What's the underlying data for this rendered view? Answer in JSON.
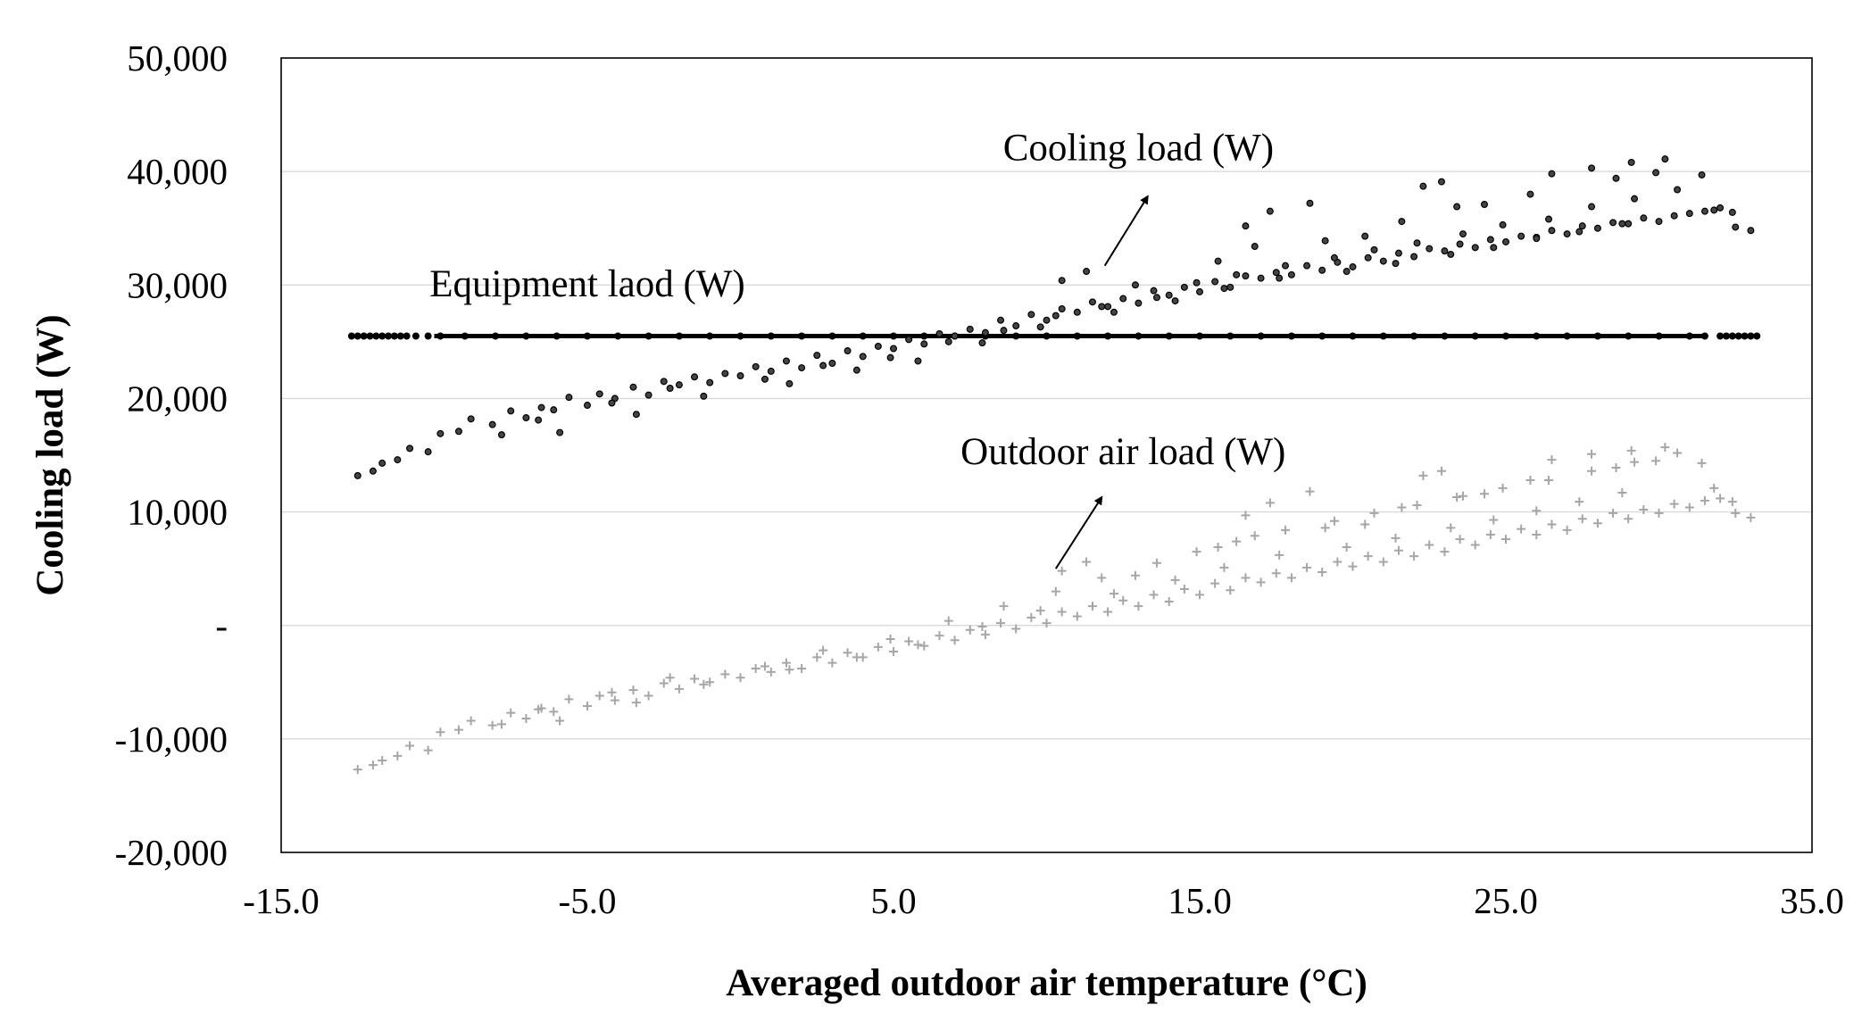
{
  "chart_data": {
    "type": "scatter",
    "title": "",
    "xlabel": "Averaged outdoor air temperature (°C)",
    "ylabel": "Cooling load (W)",
    "xlim": [
      -15.0,
      35.0
    ],
    "ylim": [
      -20000,
      50000
    ],
    "x_ticks": [
      -15.0,
      -5.0,
      5.0,
      15.0,
      25.0,
      35.0
    ],
    "x_tick_labels": [
      "-15.0",
      "-5.0",
      "5.0",
      "15.0",
      "25.0",
      "35.0"
    ],
    "y_ticks": [
      -20000,
      -10000,
      0,
      10000,
      20000,
      30000,
      40000,
      50000
    ],
    "y_tick_labels": [
      "-20,000",
      "-10,000",
      "-",
      "10,000",
      "20,000",
      "30,000",
      "40,000",
      "50,000"
    ],
    "grid": "horizontal",
    "annotations": [
      {
        "text": "Cooling load (W)",
        "x": 13.0,
        "y": 41000,
        "arrow_from": [
          11.9,
          31700
        ],
        "arrow_to": [
          13.3,
          37800
        ]
      },
      {
        "text": "Equipment laod (W)",
        "x": -5.0,
        "y": 29000
      },
      {
        "text": "Outdoor air load (W)",
        "x": 12.5,
        "y": 14200,
        "arrow_from": [
          10.3,
          5000
        ],
        "arrow_to": [
          11.8,
          11300
        ]
      }
    ],
    "series": [
      {
        "name": "Equipment laod (W)",
        "marker": "dot",
        "color": "#000000",
        "x": [
          -12.7,
          -12.5,
          -12.3,
          -12.1,
          -11.9,
          -11.7,
          -11.5,
          -11.3,
          -11.1,
          -10.9,
          -10.6,
          -10.2,
          -9.8,
          -9.0,
          -8.0,
          -7.0,
          -6.0,
          -5.0,
          -4.0,
          -3.0,
          -2.0,
          -1.0,
          0.0,
          1.0,
          2.0,
          3.0,
          4.0,
          5.0,
          6.0,
          7.0,
          8.0,
          9.0,
          10.0,
          11.0,
          12.0,
          13.0,
          14.0,
          15.0,
          16.0,
          17.0,
          18.0,
          19.0,
          20.0,
          21.0,
          22.0,
          23.0,
          24.0,
          25.0,
          26.0,
          27.0,
          28.0,
          29.0,
          30.0,
          31.0,
          31.5,
          32.0,
          32.2,
          32.4,
          32.6,
          32.8,
          33.0,
          33.2
        ],
        "y": [
          25500,
          25500,
          25500,
          25500,
          25500,
          25500,
          25500,
          25500,
          25500,
          25500,
          25500,
          25500,
          25500,
          25500,
          25500,
          25500,
          25500,
          25500,
          25500,
          25500,
          25500,
          25500,
          25500,
          25500,
          25500,
          25500,
          25500,
          25500,
          25500,
          25500,
          25500,
          25500,
          25500,
          25500,
          25500,
          25500,
          25500,
          25500,
          25500,
          25500,
          25500,
          25500,
          25500,
          25500,
          25500,
          25500,
          25500,
          25500,
          25500,
          25500,
          25500,
          25500,
          25500,
          25500,
          25500,
          25500,
          25500,
          25500,
          25500,
          25500,
          25500,
          25500
        ]
      },
      {
        "name": "Cooling load (W)",
        "marker": "circle",
        "color": "#000000",
        "x": [
          -12.5,
          -12.0,
          -11.7,
          -11.2,
          -10.8,
          -10.2,
          -9.8,
          -9.2,
          -8.8,
          -8.1,
          -7.5,
          -7.0,
          -6.5,
          -6.1,
          -5.6,
          -5.0,
          -4.6,
          -4.1,
          -3.5,
          -3.0,
          -2.5,
          -2.0,
          -1.5,
          -1.0,
          -0.5,
          0.0,
          0.5,
          1.0,
          1.5,
          2.0,
          2.5,
          3.0,
          3.5,
          4.0,
          4.5,
          5.0,
          5.5,
          6.0,
          6.5,
          7.0,
          7.5,
          8.0,
          8.5,
          9.0,
          9.5,
          10.0,
          10.5,
          11.0,
          11.5,
          12.0,
          12.5,
          13.0,
          13.5,
          14.0,
          14.5,
          15.0,
          15.5,
          16.0,
          16.5,
          17.0,
          17.5,
          18.0,
          18.5,
          19.0,
          19.5,
          20.0,
          20.5,
          21.0,
          21.5,
          22.0,
          22.5,
          23.0,
          23.5,
          24.0,
          24.5,
          25.0,
          25.5,
          26.0,
          26.5,
          27.0,
          27.5,
          28.0,
          28.5,
          29.0,
          29.5,
          30.0,
          30.5,
          31.0,
          31.5,
          32.0,
          32.5,
          33.0,
          -7.8,
          -6.6,
          -4.2,
          -2.3,
          0.8,
          2.7,
          4.9,
          6.8,
          8.6,
          10.3,
          11.8,
          13.6,
          14.9,
          16.2,
          17.8,
          19.4,
          20.7,
          22.1,
          23.6,
          24.9,
          26.4,
          27.8,
          29.2,
          30.6,
          16.5,
          17.3,
          18.6,
          20.4,
          22.3,
          22.9,
          23.4,
          26.5,
          27.8,
          29.1,
          30.2,
          31.4,
          10.5,
          11.3,
          12.9,
          15.6,
          16.8,
          19.1,
          21.6,
          24.3,
          25.8,
          28.6,
          29.9,
          32.4,
          -5.9,
          -3.4,
          -1.2,
          1.6,
          3.8,
          5.8,
          7.9,
          9.8,
          12.2,
          14.2,
          15.8,
          17.6,
          19.8,
          21.4,
          23.2,
          24.6,
          26.0,
          27.4,
          28.8,
          31.8
        ],
        "y": [
          13200,
          13600,
          14300,
          14600,
          15600,
          15300,
          16900,
          17100,
          18200,
          17700,
          18900,
          18300,
          19200,
          19000,
          20100,
          19400,
          20400,
          20000,
          21000,
          20300,
          21500,
          21200,
          21900,
          21400,
          22200,
          22000,
          22800,
          22400,
          23300,
          22700,
          23800,
          23100,
          24200,
          23700,
          24600,
          24400,
          25200,
          24800,
          25700,
          25500,
          26100,
          25800,
          26900,
          26400,
          27400,
          26900,
          27900,
          27600,
          28500,
          28100,
          28800,
          28400,
          29500,
          29100,
          29800,
          29400,
          30300,
          29800,
          30800,
          30600,
          31100,
          30900,
          31700,
          31300,
          32000,
          31600,
          32400,
          32100,
          32800,
          32500,
          33200,
          33000,
          33600,
          33300,
          34000,
          33800,
          34300,
          34200,
          34800,
          34500,
          35200,
          35000,
          35500,
          35400,
          35900,
          35600,
          36100,
          36300,
          36500,
          36800,
          35100,
          34800,
          16800,
          18100,
          19600,
          20900,
          21700,
          22900,
          23600,
          25000,
          26000,
          27300,
          28100,
          28900,
          30200,
          30900,
          31700,
          32400,
          33100,
          33700,
          34500,
          35300,
          35800,
          36900,
          37600,
          38400,
          35200,
          36500,
          37200,
          34300,
          38700,
          39100,
          36900,
          39800,
          40300,
          40800,
          41100,
          39700,
          30400,
          31200,
          30000,
          32100,
          33400,
          33900,
          35600,
          37100,
          38000,
          39400,
          39900,
          36400,
          17000,
          18600,
          20200,
          21300,
          22500,
          23300,
          24900,
          26300,
          27600,
          28600,
          29700,
          30600,
          31200,
          31900,
          32700,
          33300,
          34100,
          34700,
          35400,
          36600
        ]
      },
      {
        "name": "Outdoor air load (W)",
        "marker": "plus",
        "color": "#a6a6a6",
        "x": [
          -12.5,
          -12.0,
          -11.7,
          -11.2,
          -10.8,
          -10.2,
          -9.8,
          -9.2,
          -8.8,
          -8.1,
          -7.5,
          -7.0,
          -6.5,
          -6.1,
          -5.6,
          -5.0,
          -4.6,
          -4.1,
          -3.5,
          -3.0,
          -2.5,
          -2.0,
          -1.5,
          -1.0,
          -0.5,
          0.0,
          0.5,
          1.0,
          1.5,
          2.0,
          2.5,
          3.0,
          3.5,
          4.0,
          4.5,
          5.0,
          5.5,
          6.0,
          6.5,
          7.0,
          7.5,
          8.0,
          8.5,
          9.0,
          9.5,
          10.0,
          10.5,
          11.0,
          11.5,
          12.0,
          12.5,
          13.0,
          13.5,
          14.0,
          14.5,
          15.0,
          15.5,
          16.0,
          16.5,
          17.0,
          17.5,
          18.0,
          18.5,
          19.0,
          19.5,
          20.0,
          20.5,
          21.0,
          21.5,
          22.0,
          22.5,
          23.0,
          23.5,
          24.0,
          24.5,
          25.0,
          25.5,
          26.0,
          26.5,
          27.0,
          27.5,
          28.0,
          28.5,
          29.0,
          29.5,
          30.0,
          30.5,
          31.0,
          31.5,
          32.0,
          32.5,
          33.0,
          -7.8,
          -6.6,
          -4.2,
          -2.3,
          0.8,
          2.7,
          4.9,
          6.8,
          8.6,
          10.3,
          11.8,
          13.6,
          14.9,
          16.2,
          17.8,
          19.4,
          20.7,
          22.1,
          23.6,
          24.9,
          26.4,
          27.8,
          29.2,
          30.6,
          16.5,
          17.3,
          18.6,
          20.4,
          22.3,
          22.9,
          23.4,
          26.5,
          27.8,
          29.1,
          30.2,
          31.4,
          10.5,
          11.3,
          12.9,
          15.6,
          16.8,
          19.1,
          21.6,
          24.3,
          25.8,
          28.6,
          29.9,
          32.4,
          -5.9,
          -3.4,
          -1.2,
          1.6,
          3.8,
          5.8,
          7.9,
          9.8,
          12.2,
          14.2,
          15.8,
          17.6,
          19.8,
          21.4,
          23.2,
          24.6,
          26.0,
          27.4,
          28.8,
          31.8
        ],
        "y": [
          -12700,
          -12300,
          -11900,
          -11500,
          -10600,
          -11000,
          -9400,
          -9200,
          -8400,
          -8800,
          -7700,
          -8200,
          -7300,
          -7600,
          -6500,
          -7100,
          -6200,
          -6600,
          -5700,
          -6200,
          -5100,
          -5600,
          -4700,
          -5000,
          -4300,
          -4600,
          -3800,
          -4100,
          -3300,
          -3800,
          -2800,
          -3300,
          -2400,
          -2800,
          -1900,
          -2300,
          -1400,
          -1800,
          -900,
          -1300,
          -400,
          -800,
          200,
          -300,
          700,
          200,
          1200,
          800,
          1700,
          1200,
          2200,
          1700,
          2700,
          2100,
          3200,
          2700,
          3700,
          3100,
          4200,
          3800,
          4600,
          4200,
          5100,
          4700,
          5600,
          5200,
          6100,
          5600,
          6600,
          6100,
          7100,
          6500,
          7600,
          7100,
          8000,
          7600,
          8500,
          8000,
          8900,
          8400,
          9400,
          9000,
          9900,
          9400,
          10200,
          9900,
          10700,
          10400,
          11000,
          11200,
          9900,
          9500,
          -8700,
          -7400,
          -5900,
          -4600,
          -3600,
          -2200,
          -1200,
          400,
          1700,
          3000,
          4200,
          5500,
          6500,
          7400,
          8400,
          9200,
          9900,
          10600,
          11400,
          12100,
          12800,
          13600,
          14400,
          15200,
          9700,
          10800,
          11800,
          8900,
          13200,
          13600,
          11300,
          14600,
          15100,
          15400,
          15700,
          14300,
          4800,
          5600,
          4400,
          6900,
          7900,
          8600,
          10400,
          11600,
          12800,
          13900,
          14500,
          10900,
          -8400,
          -6800,
          -5200,
          -3900,
          -2800,
          -1700,
          -100,
          1300,
          2800,
          4000,
          5100,
          6200,
          6900,
          7700,
          8600,
          9300,
          10100,
          10900,
          11700,
          12100
        ]
      }
    ]
  }
}
